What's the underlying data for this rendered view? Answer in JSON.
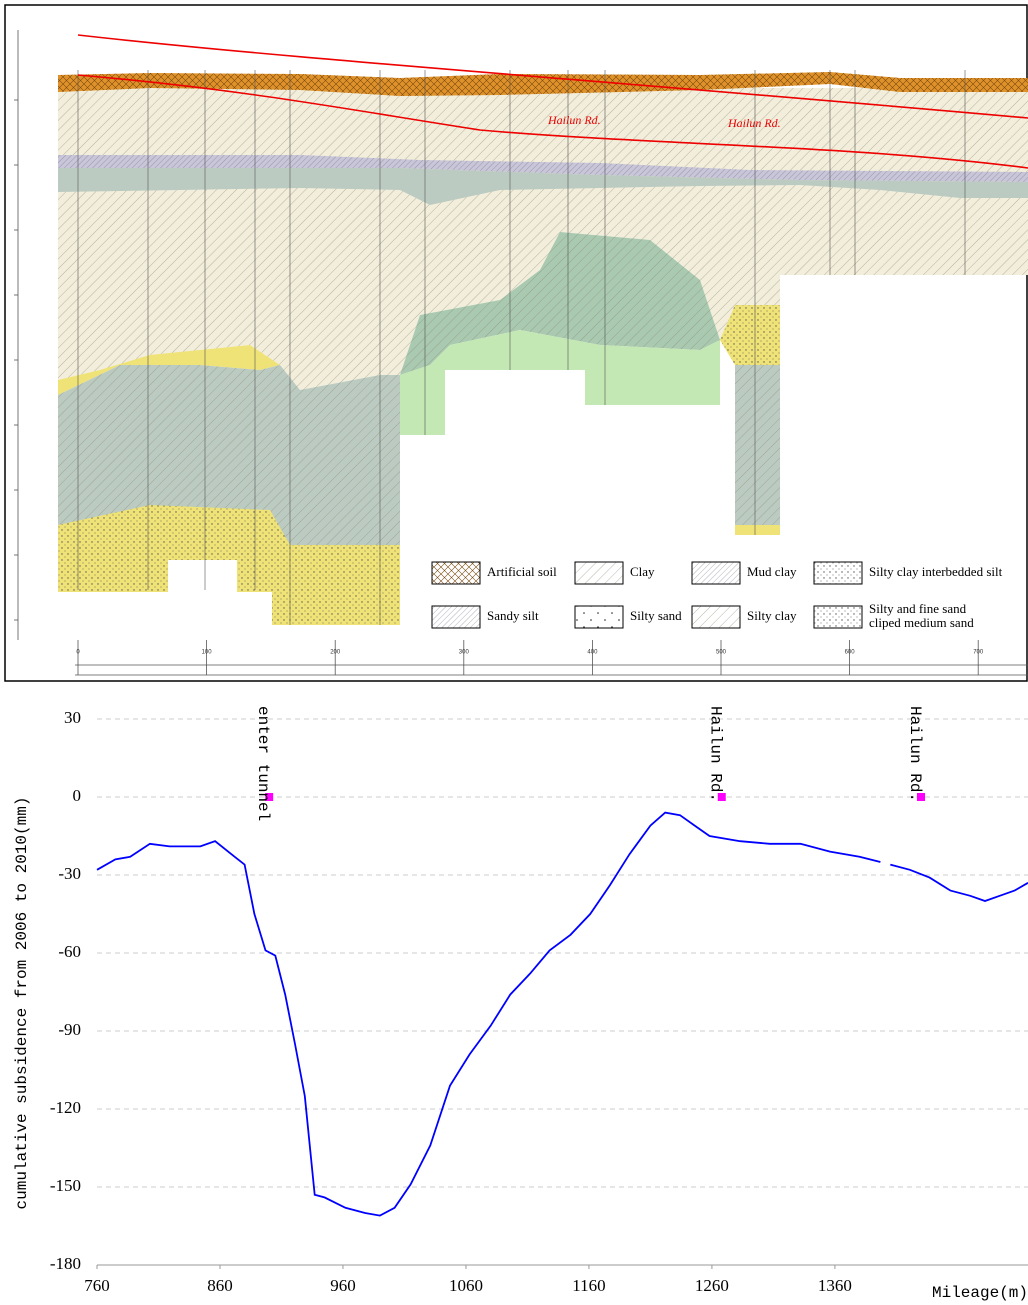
{
  "section": {
    "road_labels": [
      "Hailun Rd.",
      "Hailun Rd."
    ],
    "legend": [
      {
        "label": "Artificial soil"
      },
      {
        "label": "Clay"
      },
      {
        "label": "Mud clay"
      },
      {
        "label": "Silty clay interbedded silt"
      },
      {
        "label": "Sandy silt"
      },
      {
        "label": "Silty sand"
      },
      {
        "label": "Silty clay"
      },
      {
        "label": [
          "Silty and fine sand",
          "cliped medium sand"
        ]
      }
    ],
    "scale_ticks": [
      0,
      100,
      200,
      300,
      400,
      500,
      600,
      700
    ]
  },
  "chart_data": {
    "type": "line",
    "ylabel": "cumulative subsidence from 2006 to 2010(mm)",
    "xlabel": "Mileage(m)",
    "x": [
      760,
      775,
      787,
      803,
      819,
      844,
      856,
      872,
      880,
      888,
      897,
      905,
      913,
      921,
      929,
      937,
      945,
      962,
      978,
      990,
      1002,
      1015,
      1031,
      1047,
      1063,
      1080,
      1096,
      1112,
      1128,
      1145,
      1161,
      1177,
      1193,
      1210,
      1222,
      1234,
      1246,
      1258,
      1283,
      1307,
      1332,
      1356,
      1380,
      1397,
      1400,
      1405,
      1421,
      1437,
      1454,
      1470,
      1482,
      1494,
      1506,
      1517
    ],
    "values": [
      -28,
      -24,
      -23,
      -18,
      -19,
      -19,
      -17,
      -23,
      -26,
      -45,
      -59,
      -61,
      -76,
      -95,
      -115,
      -153,
      -154,
      -158,
      -160,
      -161,
      -158,
      -149,
      -134,
      -111,
      -99,
      -88,
      -76,
      -68,
      -59,
      -53,
      -45,
      -34,
      -22,
      -11,
      -6,
      -7,
      -11,
      -15,
      -17,
      -18,
      -18,
      -21,
      -23,
      -25,
      null,
      -26,
      -28,
      -31,
      -36,
      -38,
      -40,
      -38,
      -36,
      -33
    ],
    "color": "#0000ff",
    "markers": [
      {
        "x": 900,
        "y": 0,
        "label": "enter tunnel"
      },
      {
        "x": 1268,
        "y": 0,
        "label": "Hailun Rd."
      },
      {
        "x": 1430,
        "y": 0,
        "label": "Hailun Rd."
      }
    ],
    "marker_color": "#ff00ff",
    "xlim": [
      760,
      1517
    ],
    "ylim": [
      -180,
      30
    ],
    "xticks": [
      760,
      860,
      960,
      1060,
      1160,
      1260,
      1360
    ],
    "yticks": [
      -180,
      -150,
      -120,
      -90,
      -60,
      -30,
      0,
      30
    ],
    "grid": true
  }
}
